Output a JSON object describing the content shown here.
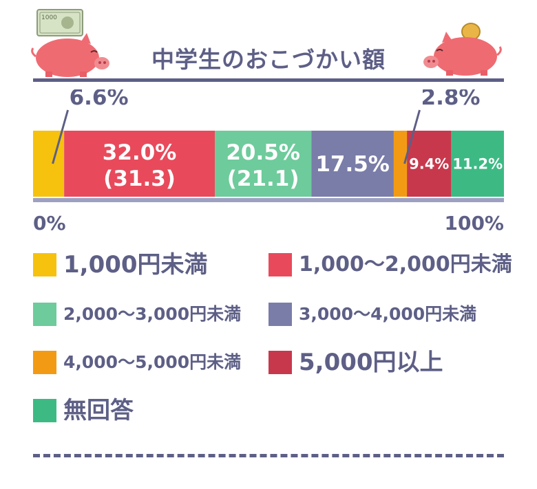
{
  "header": {
    "title": "中学生のおこづかい額"
  },
  "icons": {
    "left": "piggy-bank-with-banknote-icon",
    "right": "piggy-bank-with-coin-icon",
    "banknote_text": "1000"
  },
  "colors": {
    "title": "#5d5f86",
    "pig": "#ef6b72",
    "under_1000": "#f6c20e",
    "1000_2000": "#e84a5b",
    "2000_3000": "#6ecb9c",
    "3000_4000": "#7a7da8",
    "4000_5000": "#f39a14",
    "over_5000": "#c8384d",
    "no_answer": "#3dba84"
  },
  "chart_data": {
    "type": "bar",
    "orientation": "horizontal-stacked-100",
    "title": "中学生のおこづかい額",
    "axis_labels": {
      "start": "0%",
      "end": "100%"
    },
    "series": [
      {
        "name": "1,000円未満",
        "value": 6.6,
        "label": "6.6%",
        "color": "#f6c20e",
        "label_position": "callout-above"
      },
      {
        "name": "1,000～2,000円未満",
        "value": 32.0,
        "label": "32.0%",
        "prev_label": "(31.3)",
        "color": "#e84a5b",
        "label_position": "inside"
      },
      {
        "name": "2,000～3,000円未満",
        "value": 20.5,
        "label": "20.5%",
        "prev_label": "(21.1)",
        "color": "#6ecb9c",
        "label_position": "inside"
      },
      {
        "name": "3,000～4,000円未満",
        "value": 17.5,
        "label": "17.5%",
        "color": "#7a7da8",
        "label_position": "inside"
      },
      {
        "name": "4,000～5,000円未満",
        "value": 2.8,
        "label": "2.8%",
        "color": "#f39a14",
        "label_position": "callout-above"
      },
      {
        "name": "5,000円以上",
        "value": 9.4,
        "label": "9.4%",
        "color": "#c8384d",
        "label_position": "inside"
      },
      {
        "name": "無回答",
        "value": 11.2,
        "label": "11.2%",
        "color": "#3dba84",
        "label_position": "inside"
      }
    ],
    "legend": [
      {
        "label": "1,000円未満",
        "color": "#f6c20e",
        "size": "large"
      },
      {
        "label": "1,000～2,000円未満",
        "color": "#e84a5b",
        "size": "medium"
      },
      {
        "label": "2,000～3,000円未満",
        "color": "#6ecb9c",
        "size": "small"
      },
      {
        "label": "3,000～4,000円未満",
        "color": "#7a7da8",
        "size": "small"
      },
      {
        "label": "4,000～5,000円未満",
        "color": "#f39a14",
        "size": "small"
      },
      {
        "label": "5,000円以上",
        "color": "#c8384d",
        "size": "large"
      },
      {
        "label": "無回答",
        "color": "#3dba84",
        "size": "large"
      }
    ]
  }
}
